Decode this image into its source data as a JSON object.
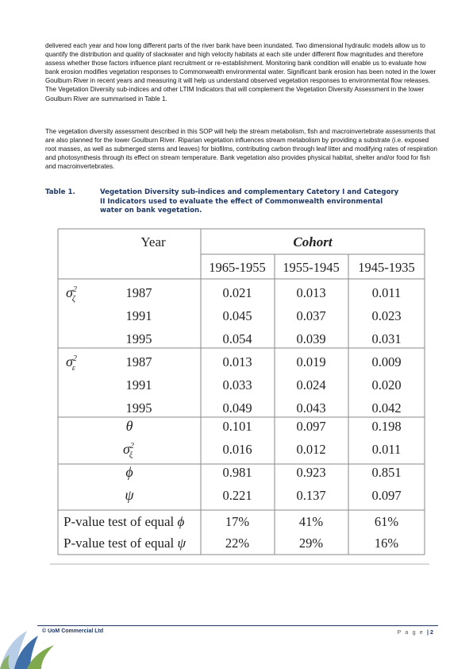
{
  "body": {
    "paragraph1": "delivered each year and how long different parts of the river bank have been inundated.  Two dimensional hydraulic models allow us to quantify the distribution and quality of slackwater and high velocity habitats at each site under different flow magnitudes and therefore assess whether those factors influence plant recruitment or re-establishment.  Monitoring bank condition will enable us to evaluate how bank erosion modifies vegetation responses to Commonwealth environmental water.  Significant bank erosion has been noted in the lower Goulburn River in recent years and measuring it will help us understand observed vegetation responses to environmental flow releases.  The Vegetation Diversity sub-indices and other LTIM Indicators that will complement the Vegetation Diversity Assessment in the lower Goulburn River are summarised in Table 1.",
    "paragraph2": "The vegetation diversity assessment described in this SOP will help the stream metabolism, fish and macroinvertebrate assessments that are also planned for the lower Goulburn River.  Riparian vegetation influences stream metabolism by providing a substrate (i.e. exposed root masses, as well as submerged stems and leaves) for biofilms, contributing carbon through leaf litter and modifying rates of respiration and photosynthesis through its effect on stream temperature. Bank vegetation also provides physical habitat, shelter and/or food for fish and macroinvertebrates."
  },
  "caption": {
    "number": "Table 1.",
    "line1": "Vegetation Diversity sub-indices and complementary Catetory I and Category",
    "line2": "II Indicators used to evaluate the effect of Commonwealth environmental",
    "line3": "water on bank vegetation."
  },
  "table": {
    "year_header": "Year",
    "cohort_header": "Cohort",
    "columns": [
      "1965-1955",
      "1955-1945",
      "1945-1935"
    ],
    "groups": [
      {
        "symbol": "σ",
        "sup": "2",
        "sub": "ζ",
        "rows": [
          {
            "year": "1987",
            "values": [
              "0.021",
              "0.013",
              "0.011"
            ]
          },
          {
            "year": "1991",
            "values": [
              "0.045",
              "0.037",
              "0.023"
            ]
          },
          {
            "year": "1995",
            "values": [
              "0.054",
              "0.039",
              "0.031"
            ]
          }
        ]
      },
      {
        "symbol": "σ",
        "sup": "2",
        "sub": "ε",
        "rows": [
          {
            "year": "1987",
            "values": [
              "0.013",
              "0.019",
              "0.009"
            ]
          },
          {
            "year": "1991",
            "values": [
              "0.033",
              "0.024",
              "0.020"
            ]
          },
          {
            "year": "1995",
            "values": [
              "0.049",
              "0.043",
              "0.042"
            ]
          }
        ]
      }
    ],
    "params": [
      {
        "symbol": "θ",
        "values": [
          "0.101",
          "0.097",
          "0.198"
        ]
      },
      {
        "symbol": "σ",
        "sup": "2",
        "sub": "ξ",
        "values": [
          "0.016",
          "0.012",
          "0.011"
        ]
      },
      {
        "symbol": "ϕ",
        "values": [
          "0.981",
          "0.923",
          "0.851"
        ]
      },
      {
        "symbol": "ψ",
        "values": [
          "0.221",
          "0.137",
          "0.097"
        ]
      }
    ],
    "tests": [
      {
        "label": "P-value test of equal",
        "symbol": "ϕ",
        "values": [
          "17%",
          "41%",
          "61%"
        ]
      },
      {
        "label": "P-value test of equal",
        "symbol": "ψ",
        "values": [
          "22%",
          "29%",
          "16%"
        ]
      }
    ]
  },
  "footer": {
    "left": "© UoM Commercial Ltd",
    "page_label": "P a g e",
    "separator": "|",
    "page_number": "2"
  },
  "colors": {
    "navy": "#1f3864",
    "logo_green": "#7fa94d",
    "logo_blue": "#3f6fa8",
    "logo_light": "#b8cde6"
  }
}
